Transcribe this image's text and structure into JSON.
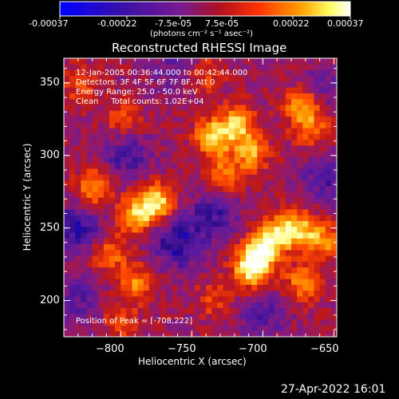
{
  "colorbar": {
    "tick_labels": [
      "-0.00037",
      "-0.00022",
      "-7.5e-05",
      "7.5e-05",
      "0.00022",
      "0.00037"
    ],
    "unit_label": "(photons cm⁻² s⁻¹ asec⁻²)",
    "range": [
      -0.00037,
      0.00037
    ]
  },
  "plot": {
    "title": "Reconstructed RHESSI Image",
    "info_lines": [
      "12-Jan-2005 00:36:44.000 to 00:42:44.000",
      "Detectors: 3F 4F 5F 6F 7F 8F, Att 0",
      "Energy Range: 25.0 - 50.0 keV",
      "Clean     Total counts: 1.02E+04"
    ],
    "peak_label": "Position of Peak = [-708,222]"
  },
  "footer": {
    "timestamp": "27-Apr-2022 16:01"
  },
  "chart_data": {
    "type": "heatmap",
    "title": "Reconstructed RHESSI Image",
    "xlabel": "Heliocentric X (arcsec)",
    "ylabel": "Heliocentric Y (arcsec)",
    "xlim": [
      -840,
      -648
    ],
    "ylim": [
      175,
      367
    ],
    "x_ticks": [
      -800,
      -750,
      -700,
      -650
    ],
    "y_ticks": [
      200,
      250,
      300,
      350
    ],
    "x_tick_labels": [
      "−800",
      "−750",
      "−700",
      "−650"
    ],
    "y_tick_labels": [
      "200",
      "250",
      "300",
      "350"
    ],
    "colormap": [
      "#0000ff",
      "#2a0a8a",
      "#5a1aa0",
      "#8a1a78",
      "#c01818",
      "#ff4a00",
      "#ffa000",
      "#ffff90",
      "#ffffff"
    ],
    "peak": [
      -708,
      222
    ],
    "bright_sources": [
      {
        "x": -775,
        "y": 268,
        "value": 0.00033
      },
      {
        "x": -790,
        "y": 258,
        "value": 0.00026
      },
      {
        "x": -808,
        "y": 232,
        "value": 0.00018
      },
      {
        "x": -818,
        "y": 278,
        "value": 0.00024
      },
      {
        "x": -790,
        "y": 212,
        "value": 0.0002
      },
      {
        "x": -708,
        "y": 222,
        "value": 0.00037
      },
      {
        "x": -700,
        "y": 235,
        "value": 0.00031
      },
      {
        "x": -688,
        "y": 248,
        "value": 0.00026
      },
      {
        "x": -672,
        "y": 248,
        "value": 0.00024
      },
      {
        "x": -672,
        "y": 212,
        "value": 0.00022
      },
      {
        "x": -735,
        "y": 312,
        "value": 0.0003
      },
      {
        "x": -718,
        "y": 322,
        "value": 0.00028
      },
      {
        "x": -708,
        "y": 302,
        "value": 0.00024
      },
      {
        "x": -728,
        "y": 285,
        "value": 0.00022
      },
      {
        "x": -672,
        "y": 335,
        "value": 0.00028
      },
      {
        "x": -665,
        "y": 318,
        "value": 0.00018
      },
      {
        "x": -655,
        "y": 240,
        "value": 0.0002
      },
      {
        "x": -742,
        "y": 355,
        "value": 0.00016
      },
      {
        "x": -798,
        "y": 325,
        "value": 0.00015
      },
      {
        "x": -828,
        "y": 348,
        "value": 0.00014
      },
      {
        "x": -735,
        "y": 200,
        "value": 0.00012
      },
      {
        "x": -800,
        "y": 185,
        "value": 0.00013
      }
    ],
    "dark_sources": [
      {
        "x": -760,
        "y": 240,
        "value": -0.00022
      },
      {
        "x": -830,
        "y": 250,
        "value": -0.0002
      },
      {
        "x": -795,
        "y": 300,
        "value": -0.00016
      },
      {
        "x": -735,
        "y": 260,
        "value": -0.00018
      },
      {
        "x": -655,
        "y": 285,
        "value": -0.00016
      },
      {
        "x": -700,
        "y": 190,
        "value": -0.00012
      },
      {
        "x": -760,
        "y": 360,
        "value": -0.00012
      },
      {
        "x": -830,
        "y": 200,
        "value": -0.00012
      },
      {
        "x": -660,
        "y": 345,
        "value": -0.00012
      }
    ]
  }
}
